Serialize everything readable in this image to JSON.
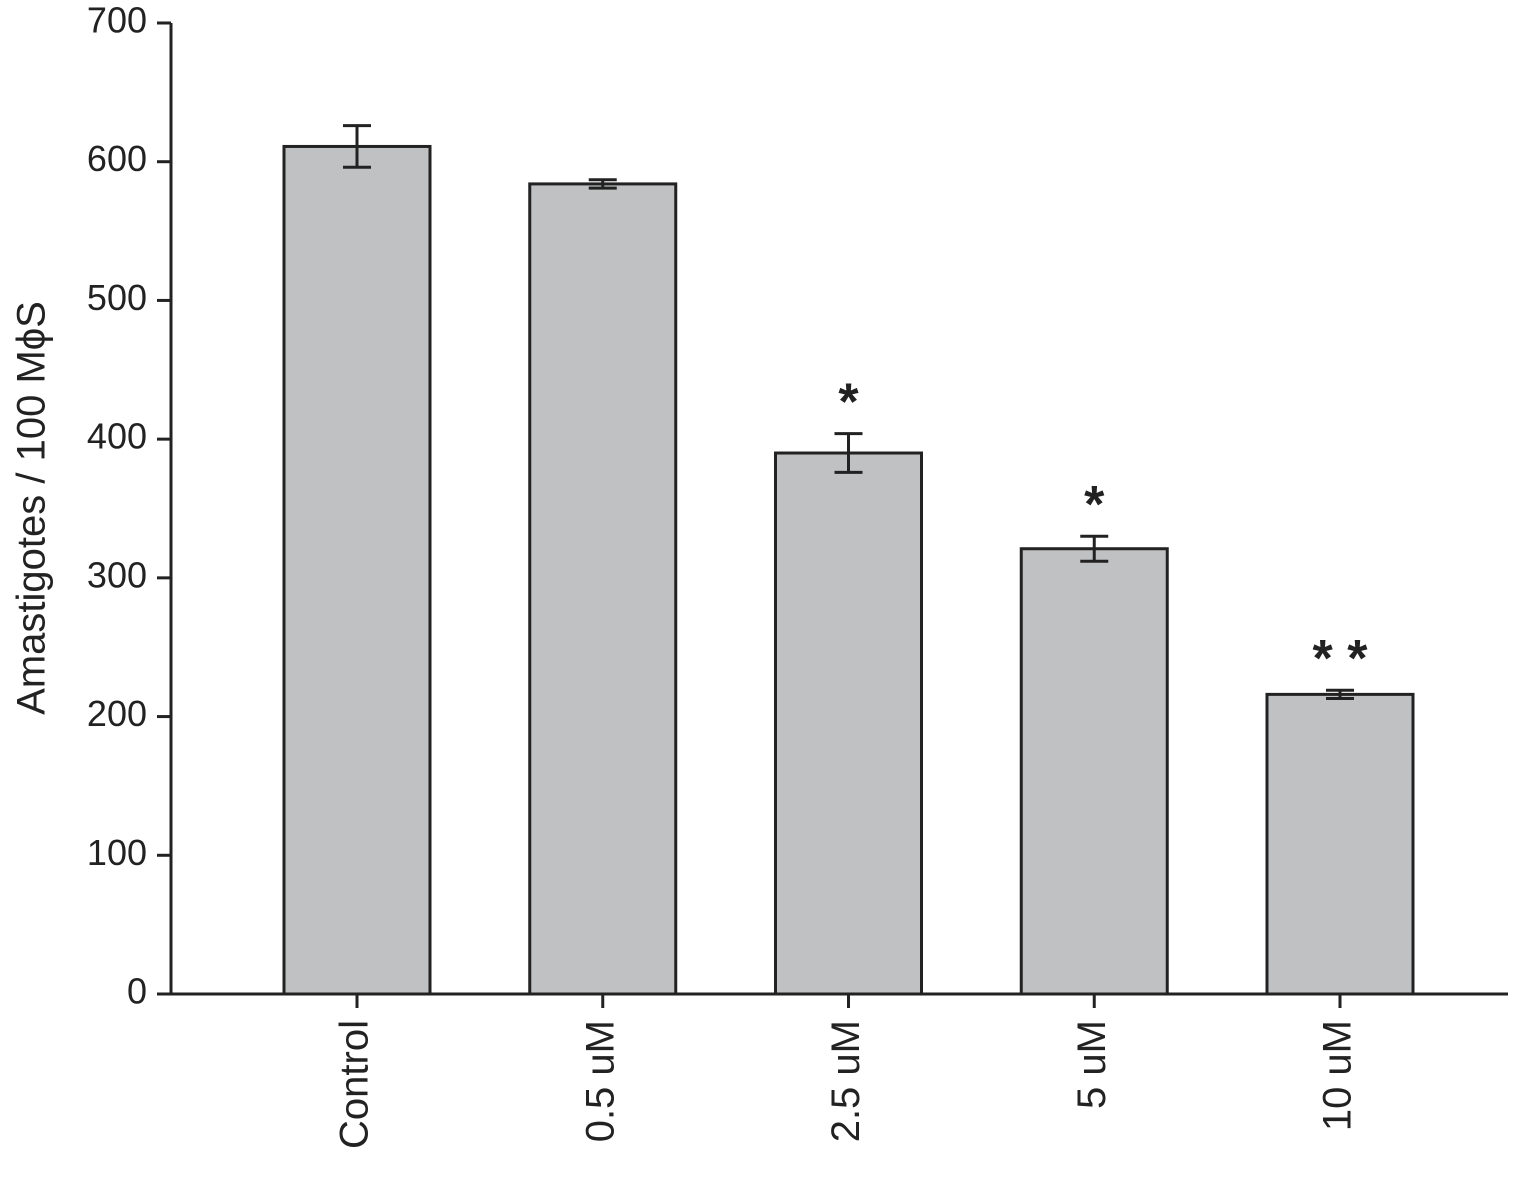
{
  "chart_data": {
    "type": "bar",
    "y_label": "Amastigotes / 100 MϕS",
    "categories": [
      "Control",
      "0.5 uM",
      "2.5 uM",
      "5 uM",
      "10 uM"
    ],
    "values": [
      611,
      584,
      390,
      321,
      216
    ],
    "errors": [
      15,
      3,
      14,
      9,
      3
    ],
    "annotations": [
      null,
      null,
      "*",
      "*",
      "* *"
    ],
    "color": "#c0c1c3",
    "edge_color": "#222222",
    "ylim": [
      0,
      700
    ],
    "yticks": [
      0,
      100,
      200,
      300,
      400,
      500,
      600,
      700
    ],
    "grid": false
  }
}
